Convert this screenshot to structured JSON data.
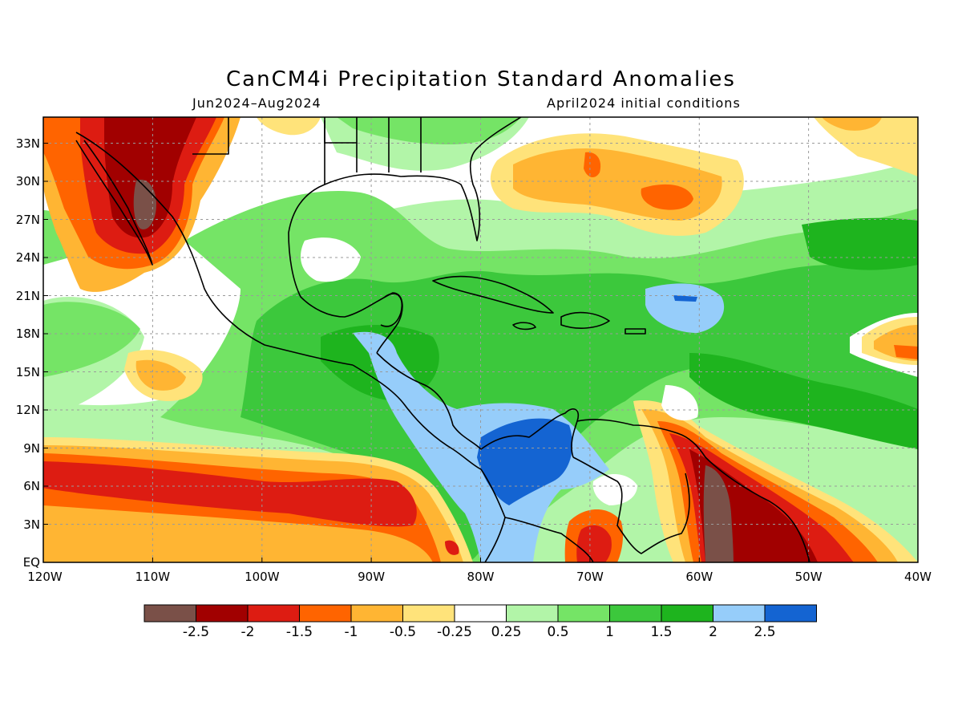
{
  "title": "CanCM4i Precipitation Standard Anomalies",
  "period": "Jun2024–Aug2024",
  "initial_conditions": "April2024 initial conditions",
  "lat_labels": [
    "33N",
    "30N",
    "27N",
    "24N",
    "21N",
    "18N",
    "15N",
    "12N",
    "9N",
    "6N",
    "3N",
    "EQ"
  ],
  "lon_labels": [
    "120W",
    "110W",
    "100W",
    "90W",
    "80W",
    "70W",
    "60W",
    "50W",
    "40W"
  ],
  "colorbar": {
    "colors": [
      "#7a5048",
      "#a10000",
      "#dd1c12",
      "#ff6400",
      "#ffb533",
      "#ffe37a",
      "#ffffff",
      "#b2f5a8",
      "#75e466",
      "#3cc83c",
      "#1eb41e",
      "#96cdfa",
      "#1464d2"
    ],
    "tick_labels": [
      "-2.5",
      "-2",
      "-1.5",
      "-1",
      "-0.5",
      "-0.25",
      "0.25",
      "0.5",
      "1",
      "1.5",
      "2",
      "2.5"
    ]
  },
  "map_colors": {
    "ocean_base": "#ffffff",
    "coast": "#000000",
    "grid": "#9a9a9a"
  }
}
